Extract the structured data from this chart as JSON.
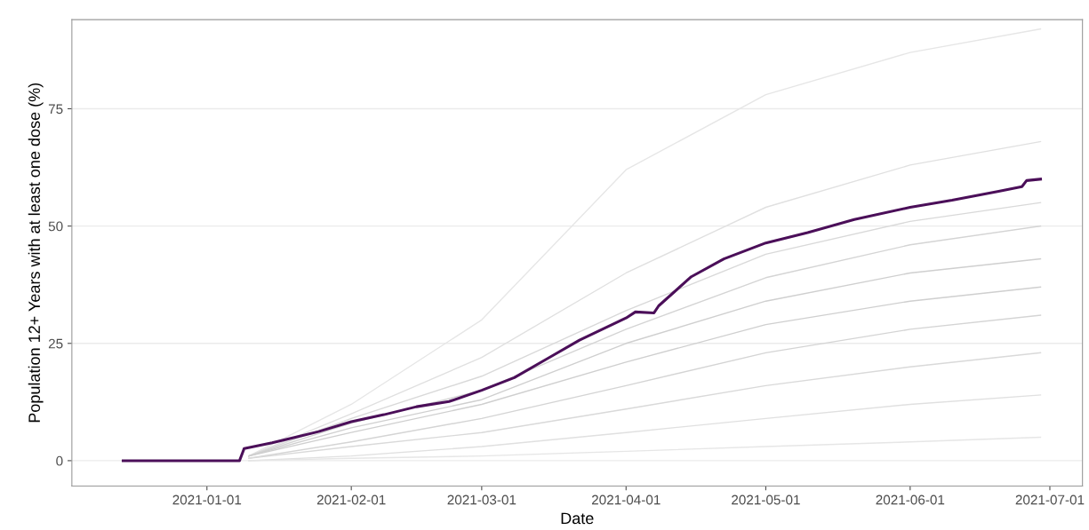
{
  "chart_data": {
    "type": "line",
    "xlabel": "Date",
    "ylabel": "Population 12+ Years with at least one dose (%)",
    "xlim": [
      "2020-12-03",
      "2021-07-08"
    ],
    "ylim": [
      -5.4,
      94
    ],
    "xticks": [
      {
        "value": "2021-01-01",
        "label": "2021-01-01"
      },
      {
        "value": "2021-02-01",
        "label": "2021-02-01"
      },
      {
        "value": "2021-03-01",
        "label": "2021-03-01"
      },
      {
        "value": "2021-04-01",
        "label": "2021-04-01"
      },
      {
        "value": "2021-05-01",
        "label": "2021-05-01"
      },
      {
        "value": "2021-06-01",
        "label": "2021-06-01"
      },
      {
        "value": "2021-07-01",
        "label": "2021-07-01"
      }
    ],
    "yticks": [
      0,
      25,
      50,
      75
    ],
    "grid": "y",
    "series": [
      {
        "color": "#e6e6e6",
        "x": [
          "2021-01-10",
          "2021-02-01",
          "2021-03-01",
          "2021-04-01",
          "2021-05-01",
          "2021-06-01",
          "2021-06-29"
        ],
        "values": [
          1,
          12,
          30,
          62,
          78,
          87,
          92
        ]
      },
      {
        "color": "#e0e0e0",
        "x": [
          "2021-01-10",
          "2021-02-01",
          "2021-03-01",
          "2021-04-01",
          "2021-05-01",
          "2021-06-01",
          "2021-06-29"
        ],
        "values": [
          1,
          10,
          22,
          40,
          54,
          63,
          68
        ]
      },
      {
        "color": "#d9d9d9",
        "x": [
          "2021-01-10",
          "2021-02-01",
          "2021-03-01",
          "2021-04-01",
          "2021-05-01",
          "2021-06-01",
          "2021-06-29"
        ],
        "values": [
          1,
          9,
          18,
          32,
          44,
          51,
          55
        ]
      },
      {
        "color": "#d4d4d4",
        "x": [
          "2021-01-10",
          "2021-02-01",
          "2021-03-01",
          "2021-04-01",
          "2021-05-01",
          "2021-06-01",
          "2021-06-29"
        ],
        "values": [
          1,
          8,
          15,
          28,
          39,
          46,
          50
        ]
      },
      {
        "color": "#cfcfcf",
        "x": [
          "2021-01-10",
          "2021-02-01",
          "2021-03-01",
          "2021-04-01",
          "2021-05-01",
          "2021-06-01",
          "2021-06-29"
        ],
        "values": [
          1,
          7,
          13,
          25,
          34,
          40,
          43
        ]
      },
      {
        "color": "#cfcfcf",
        "x": [
          "2021-01-10",
          "2021-02-01",
          "2021-03-01",
          "2021-04-01",
          "2021-05-01",
          "2021-06-01",
          "2021-06-29"
        ],
        "values": [
          1,
          6,
          12,
          21,
          29,
          34,
          37
        ]
      },
      {
        "color": "#d4d4d4",
        "x": [
          "2021-01-10",
          "2021-02-01",
          "2021-03-01",
          "2021-04-01",
          "2021-05-01",
          "2021-06-01",
          "2021-06-29"
        ],
        "values": [
          0.5,
          4,
          9,
          16,
          23,
          28,
          31
        ]
      },
      {
        "color": "#d9d9d9",
        "x": [
          "2021-01-10",
          "2021-02-01",
          "2021-03-01",
          "2021-04-01",
          "2021-05-01",
          "2021-06-01",
          "2021-06-29"
        ],
        "values": [
          0.5,
          3,
          6,
          11,
          16,
          20,
          23
        ]
      },
      {
        "color": "#e0e0e0",
        "x": [
          "2021-01-10",
          "2021-02-01",
          "2021-03-01",
          "2021-04-01",
          "2021-05-01",
          "2021-06-01",
          "2021-06-29"
        ],
        "values": [
          0,
          1,
          3,
          6,
          9,
          12,
          14
        ]
      },
      {
        "color": "#e6e6e6",
        "x": [
          "2021-01-10",
          "2021-02-01",
          "2021-03-01",
          "2021-04-01",
          "2021-05-01",
          "2021-06-01",
          "2021-06-29"
        ],
        "values": [
          0,
          0.5,
          1,
          2,
          3,
          4,
          5
        ]
      },
      {
        "color": "#4b0f59",
        "x": [
          "2020-12-14",
          "2021-01-08",
          "2021-01-09",
          "2021-01-15",
          "2021-01-20",
          "2021-01-25",
          "2021-02-01",
          "2021-02-08",
          "2021-02-15",
          "2021-02-22",
          "2021-03-01",
          "2021-03-08",
          "2021-03-15",
          "2021-03-22",
          "2021-04-01",
          "2021-04-03",
          "2021-04-07",
          "2021-04-08",
          "2021-04-15",
          "2021-04-22",
          "2021-05-01",
          "2021-05-10",
          "2021-05-20",
          "2021-06-01",
          "2021-06-10",
          "2021-06-20",
          "2021-06-25",
          "2021-06-26",
          "2021-06-29"
        ],
        "values": [
          0,
          0,
          2.6,
          3.8,
          5,
          6.2,
          8.3,
          9.8,
          11.5,
          12.6,
          15,
          17.7,
          21.7,
          25.7,
          30.4,
          31.7,
          31.5,
          33,
          39.2,
          43,
          46.4,
          48.6,
          51.4,
          54,
          55.5,
          57.4,
          58.4,
          59.7,
          60
        ]
      }
    ]
  }
}
